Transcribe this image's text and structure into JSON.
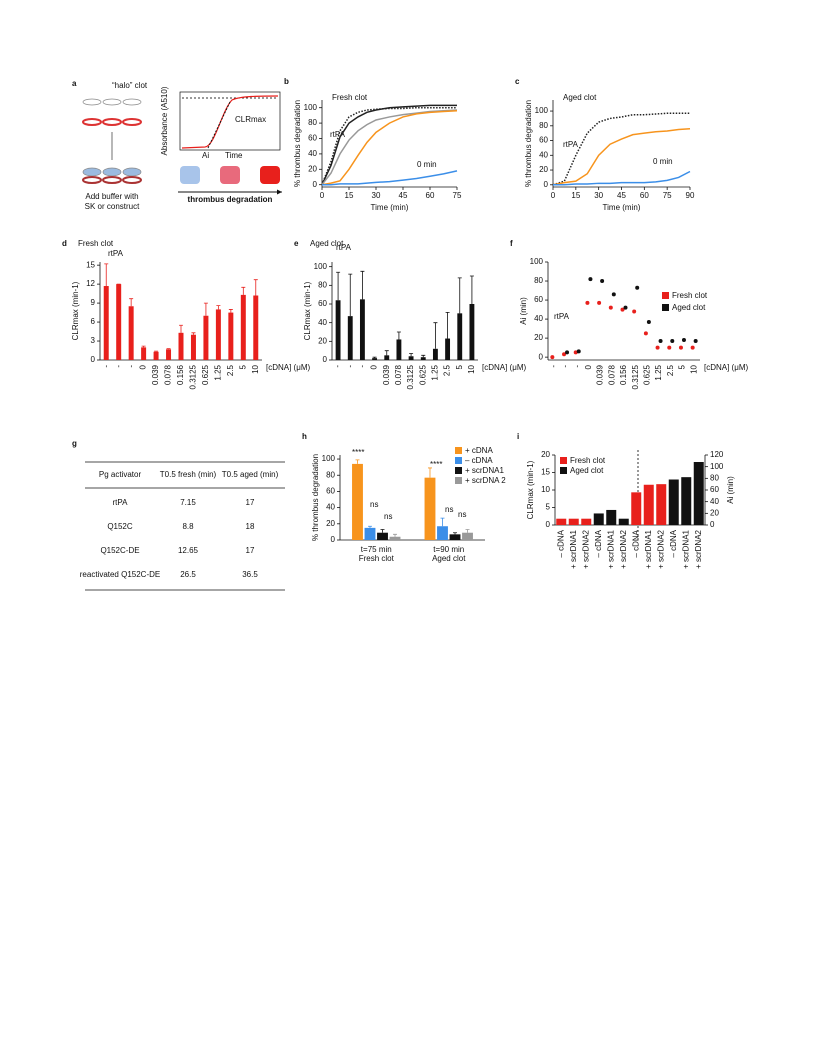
{
  "panel_a": {
    "panel": "a",
    "title": "“halo” clot",
    "caption_1": "Add buffer with",
    "caption_2": "SK or construct",
    "ylabel": "Absorbance (A510)",
    "rate": "CLRmax",
    "onset": "Ai",
    "xlabel": "Time",
    "arrow": "thrombus degradation"
  },
  "table": {
    "panel": "g",
    "header": [
      "Pg activator",
      "T0.5 fresh (min)",
      "T0.5 aged (min)"
    ],
    "rows": [
      [
        "rtPA",
        "7.15",
        "17"
      ],
      [
        "Q152C",
        "8.8",
        "18"
      ],
      [
        "Q152C-DE",
        "12.65",
        "17"
      ],
      [
        "reactivated Q152C-DE",
        "26.5",
        "36.5"
      ]
    ]
  },
  "chart_data": [
    {
      "panel": "b",
      "type": "line",
      "title": "Fresh clot",
      "xlabel": "Time (min)",
      "ylabel": "% thrombus degradation",
      "x": [
        0,
        5,
        10,
        15,
        20,
        25,
        30,
        37.5,
        45,
        52.5,
        60,
        67.5,
        75
      ],
      "xlim": [
        0,
        75
      ],
      "xticks": [
        0,
        15,
        30,
        45,
        60,
        75
      ],
      "ylim": [
        -3,
        110
      ],
      "yticks": [
        0,
        20,
        40,
        60,
        80,
        100
      ],
      "series": [
        {
          "color": "#222222",
          "dash": true,
          "values": [
            0,
            30,
            70,
            88,
            94,
            97,
            98,
            99,
            99,
            100,
            100,
            100,
            100
          ]
        },
        {
          "color": "#222222",
          "values": [
            0,
            25,
            62,
            80,
            88,
            94,
            97,
            100,
            101,
            102,
            103,
            103,
            103
          ]
        },
        {
          "color": "#999999",
          "values": [
            0,
            15,
            40,
            58,
            70,
            78,
            84,
            88,
            91,
            93,
            95,
            96,
            97
          ]
        },
        {
          "color": "#f7941d",
          "values": [
            0,
            2,
            5,
            20,
            38,
            55,
            68,
            80,
            88,
            92,
            94,
            95,
            96
          ]
        },
        {
          "color": "#3b8ee8",
          "values": [
            0,
            0,
            1,
            1,
            1,
            2,
            3,
            4,
            6,
            8,
            11,
            14,
            18
          ]
        }
      ],
      "annotations": [
        "rtPA",
        "0 min"
      ]
    },
    {
      "panel": "c",
      "type": "line",
      "title": "Aged clot",
      "xlabel": "Time (min)",
      "ylabel": "% thrombus degradation",
      "x": [
        0,
        7.5,
        15,
        22.5,
        30,
        37.5,
        45,
        52.5,
        60,
        67.5,
        75,
        82.5,
        90
      ],
      "xlim": [
        0,
        90
      ],
      "xticks": [
        0,
        15,
        30,
        45,
        60,
        75,
        90
      ],
      "ylim": [
        -3,
        115
      ],
      "yticks": [
        0,
        20,
        40,
        60,
        80,
        100
      ],
      "series": [
        {
          "color": "#222222",
          "dash": true,
          "values": [
            0,
            5,
            40,
            70,
            85,
            90,
            92,
            95,
            95,
            96,
            97,
            97,
            97
          ]
        },
        {
          "color": "#f7941d",
          "values": [
            0,
            3,
            5,
            15,
            40,
            55,
            62,
            68,
            70,
            72,
            73,
            75,
            76
          ]
        },
        {
          "color": "#3b8ee8",
          "values": [
            0,
            0,
            1,
            1,
            2,
            2,
            3,
            3,
            3,
            4,
            6,
            10,
            18
          ]
        }
      ],
      "annotations": [
        "rtPA",
        "0 min"
      ]
    },
    {
      "panel": "d",
      "type": "bar",
      "title": "Fresh clot",
      "ylabel": "CLRmax (min-1)",
      "xlabel": "[cDNA] (μM)",
      "categories": [
        "-",
        "-",
        "-",
        "0",
        "0.039",
        "0.078",
        "0.156",
        "0.3125",
        "0.625",
        "1.25",
        "2.5",
        "5",
        "10"
      ],
      "values": [
        11.7,
        12,
        8.5,
        2,
        1.3,
        1.7,
        4.3,
        4,
        7,
        8,
        7.5,
        10.3,
        10.2
      ],
      "errors": [
        3.5,
        0,
        1.2,
        0.2,
        0.1,
        0.1,
        1.2,
        0.3,
        2,
        0.6,
        0.5,
        1.2,
        2.5
      ],
      "color": "#e8201c",
      "ylim": [
        0,
        15.5
      ],
      "yticks": [
        0,
        3,
        6,
        9,
        12,
        15
      ],
      "annotations": [
        "rtPA"
      ]
    },
    {
      "panel": "e",
      "type": "bar",
      "title": "Aged clot",
      "ylabel": "CLRmax (min-1)",
      "xlabel": "[cDNA] (μM)",
      "categories": [
        "-",
        "-",
        "-",
        "0",
        "0.039",
        "0.078",
        "0.3125",
        "0.625",
        "1.25",
        "2.5",
        "5",
        "10"
      ],
      "values": [
        64,
        47,
        65,
        2,
        5,
        22,
        4,
        3,
        12,
        23,
        50,
        60
      ],
      "errors": [
        30,
        45,
        30,
        1,
        5,
        8,
        3,
        2,
        28,
        28,
        38,
        30
      ],
      "color": "#111111",
      "ylim": [
        0,
        105
      ],
      "yticks": [
        0,
        20,
        40,
        60,
        80,
        100
      ],
      "annotations": [
        "rtPA"
      ]
    },
    {
      "panel": "f",
      "type": "scatter",
      "ylabel": "Ai (min)",
      "xlabel": "[cDNA] (μM)",
      "categories": [
        "-",
        "-",
        "-",
        "0",
        "0.039",
        "0.078",
        "0.156",
        "0.3125",
        "0.625",
        "1.25",
        "2.5",
        "5",
        "10"
      ],
      "ylim": [
        -3,
        100
      ],
      "yticks": [
        0,
        20,
        40,
        60,
        80,
        100
      ],
      "series": [
        {
          "name": "Fresh clot",
          "color": "#e8201c",
          "values": [
            0,
            3,
            5,
            57,
            57,
            52,
            50,
            48,
            25,
            10,
            10,
            10,
            10
          ]
        },
        {
          "name": "Aged clot",
          "color": "#111111",
          "values": [
            null,
            5,
            6,
            82,
            80,
            66,
            52,
            73,
            37,
            17,
            17,
            18,
            17
          ]
        }
      ],
      "annotations": [
        "rtPA"
      ]
    },
    {
      "panel": "h",
      "type": "grouped_bar",
      "ylabel": "% thrombus degradation",
      "categories": [
        "t=75 min",
        "t=90 min"
      ],
      "groups": [
        "Fresh clot",
        "Aged clot"
      ],
      "ylim": [
        0,
        105
      ],
      "yticks": [
        0,
        20,
        40,
        60,
        80,
        100
      ],
      "series": [
        {
          "name": "+ cDNA",
          "color": "#f7941d",
          "values": [
            94,
            77
          ],
          "errors": [
            5,
            12
          ]
        },
        {
          "name": "– cDNA",
          "color": "#3b8ee8",
          "values": [
            15,
            17
          ],
          "errors": [
            2,
            10
          ]
        },
        {
          "name": "+ scrDNA1",
          "color": "#111111",
          "values": [
            9,
            7
          ],
          "errors": [
            4,
            2
          ]
        },
        {
          "name": "+ scrDNA 2",
          "color": "#999999",
          "values": [
            4,
            9
          ],
          "errors": [
            3,
            4
          ]
        }
      ],
      "annotations": [
        "****",
        "ns",
        "ns",
        "****",
        "ns",
        "ns"
      ]
    },
    {
      "panel": "i",
      "type": "dual_bar",
      "ylabel": "CLRmax (min-1)",
      "y2label": "Ai (min)",
      "categories": [
        "– cDNA",
        "+ scrDNA1",
        "+ scrDNA2",
        "– cDNA",
        "+ scrDNA1",
        "+ scrDNA2",
        "– cDNA",
        "+ scrDNA1",
        "+ scrDNA2",
        "– cDNA",
        "+ scrDNA1",
        "+ scrDNA2"
      ],
      "ylim": [
        0,
        20
      ],
      "yticks": [
        0,
        5,
        10,
        15,
        20
      ],
      "y2lim": [
        0,
        120
      ],
      "y2ticks": [
        0,
        20,
        40,
        60,
        80,
        100,
        120
      ],
      "series": [
        {
          "name": "Fresh clot",
          "color": "#e8201c",
          "values": [
            1.8,
            1.8,
            1.8,
            null,
            null,
            null,
            null,
            null,
            null,
            null,
            null,
            null
          ]
        },
        {
          "name": "Aged clot",
          "color": "#111111",
          "values": [
            null,
            null,
            null,
            3.3,
            4.3,
            1.8,
            null,
            null,
            null,
            null,
            null,
            null
          ]
        },
        {
          "color": "#e8201c",
          "axis": "y2",
          "values": [
            null,
            null,
            null,
            null,
            null,
            null,
            56,
            69,
            70,
            null,
            null,
            null
          ]
        },
        {
          "color": "#111111",
          "axis": "y2",
          "values": [
            null,
            null,
            null,
            null,
            null,
            null,
            null,
            null,
            null,
            78,
            82,
            108
          ]
        }
      ]
    }
  ]
}
